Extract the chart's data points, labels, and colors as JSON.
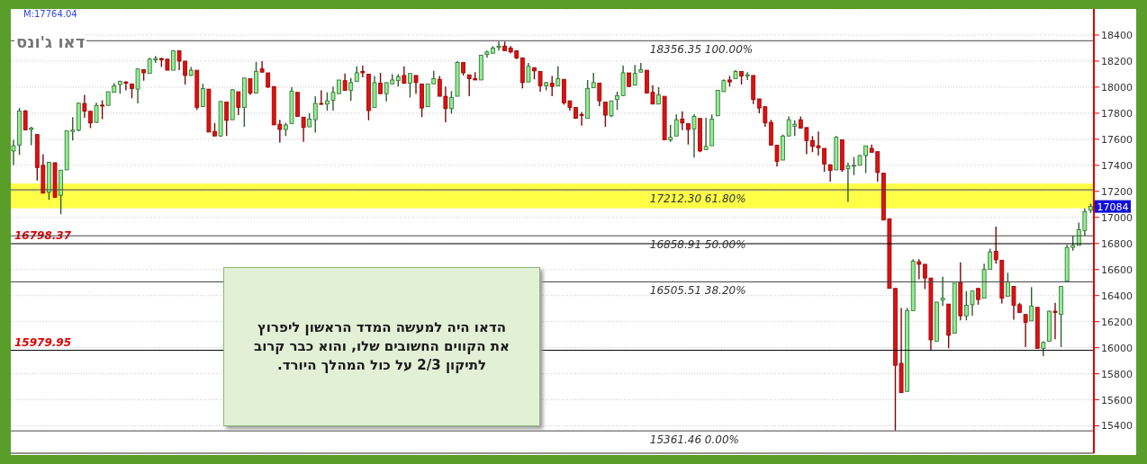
{
  "chart_data": {
    "type": "candlestick",
    "title": "דאו ג'ונס",
    "categories": [
      null,
      null,
      null,
      null,
      null,
      null,
      null,
      null,
      null,
      null,
      null,
      null,
      null,
      null,
      null,
      null,
      null,
      null,
      null,
      null,
      null,
      null,
      null,
      null,
      null,
      null,
      null,
      null,
      null,
      null,
      null,
      null,
      null,
      null,
      null,
      null,
      null,
      null,
      null,
      null,
      null,
      null,
      null,
      null,
      null,
      null,
      null,
      null,
      null,
      null,
      null,
      null,
      null,
      null,
      null,
      null,
      null,
      null,
      null,
      null,
      null,
      null,
      null,
      null,
      null,
      null,
      null,
      null,
      null,
      null,
      null,
      null,
      null,
      null,
      null,
      null,
      null,
      null,
      null,
      null,
      null,
      null,
      null,
      null,
      null,
      null,
      null,
      null,
      null,
      null,
      null,
      null,
      null,
      null,
      null,
      null,
      null,
      null,
      null,
      null,
      null,
      null,
      null,
      null,
      null,
      null,
      null,
      null,
      null,
      null,
      null,
      null,
      null,
      null,
      null,
      null,
      null,
      null,
      null,
      null,
      null,
      null,
      null,
      null,
      null,
      null,
      null,
      null,
      null,
      null,
      null,
      null,
      null,
      null,
      null,
      null,
      null,
      null,
      null,
      null,
      null,
      null,
      null,
      null,
      null,
      null,
      null,
      null,
      null,
      null,
      null,
      null,
      null,
      null,
      null,
      null,
      null,
      null,
      null,
      null,
      null,
      null,
      null,
      null,
      null,
      null,
      null,
      null,
      null,
      null,
      null,
      null,
      null,
      null,
      null,
      null,
      null,
      null,
      null,
      null,
      null,
      null,
      null
    ],
    "ohlc": [
      [
        17510,
        17595,
        17400,
        17550
      ],
      [
        17556,
        17840,
        17480,
        17817
      ],
      [
        17817,
        17825,
        17670,
        17671
      ],
      [
        17675,
        17695,
        17555,
        17685
      ],
      [
        17636,
        17640,
        17283,
        17383
      ],
      [
        17400,
        17485,
        17186,
        17186
      ],
      [
        17193,
        17425,
        17135,
        17423
      ],
      [
        17420,
        17420,
        17150,
        17155
      ],
      [
        17170,
        17363,
        17025,
        17363
      ],
      [
        17365,
        17665,
        17365,
        17665
      ],
      [
        17660,
        17770,
        17590,
        17670
      ],
      [
        17670,
        17880,
        17660,
        17877
      ],
      [
        17875,
        17940,
        17765,
        17815
      ],
      [
        17815,
        17815,
        17685,
        17725
      ],
      [
        17730,
        17880,
        17725,
        17860
      ],
      [
        17862,
        17900,
        17755,
        17855
      ],
      [
        17860,
        17965,
        17860,
        17965
      ],
      [
        17960,
        18030,
        17960,
        18010
      ],
      [
        18020,
        18050,
        17950,
        18045
      ],
      [
        18040,
        18045,
        17975,
        18030
      ],
      [
        18025,
        18025,
        17915,
        17990
      ],
      [
        17985,
        18140,
        17875,
        18140
      ],
      [
        18135,
        18135,
        18050,
        18110
      ],
      [
        18105,
        18225,
        18105,
        18215
      ],
      [
        18210,
        18240,
        18185,
        18220
      ],
      [
        18220,
        18225,
        18155,
        18210
      ],
      [
        18215,
        18215,
        18130,
        18130
      ],
      [
        18130,
        18285,
        18130,
        18280
      ],
      [
        18280,
        18280,
        18130,
        18200
      ],
      [
        18200,
        18200,
        18020,
        18090
      ],
      [
        18090,
        18155,
        18085,
        18130
      ],
      [
        18130,
        18130,
        17825,
        17845
      ],
      [
        17850,
        18025,
        17850,
        17990
      ],
      [
        17985,
        17985,
        17655,
        17655
      ],
      [
        17660,
        17725,
        17625,
        17625
      ],
      [
        17625,
        17890,
        17620,
        17890
      ],
      [
        17885,
        17885,
        17625,
        17745
      ],
      [
        17750,
        17985,
        17750,
        17980
      ],
      [
        17965,
        17965,
        17785,
        17845
      ],
      [
        17845,
        18070,
        17695,
        18070
      ],
      [
        18065,
        18065,
        17940,
        17955
      ],
      [
        17955,
        18195,
        17955,
        18120
      ],
      [
        18140,
        18200,
        18115,
        18115
      ],
      [
        18110,
        18110,
        17995,
        18000
      ],
      [
        18005,
        18005,
        17710,
        17710
      ],
      [
        17715,
        17750,
        17575,
        17675
      ],
      [
        17675,
        17725,
        17625,
        17710
      ],
      [
        17720,
        18000,
        17720,
        17970
      ],
      [
        17960,
        17960,
        17775,
        17775
      ],
      [
        17770,
        17770,
        17580,
        17690
      ],
      [
        17695,
        17800,
        17695,
        17755
      ],
      [
        17750,
        17930,
        17650,
        17875
      ],
      [
        17875,
        17975,
        17865,
        17870
      ],
      [
        17870,
        17960,
        17820,
        17895
      ],
      [
        17900,
        18005,
        17820,
        17960
      ],
      [
        17950,
        18055,
        17950,
        18055
      ],
      [
        18050,
        18105,
        17975,
        17975
      ],
      [
        17975,
        18070,
        17895,
        18035
      ],
      [
        18045,
        18160,
        18045,
        18110
      ],
      [
        18120,
        18165,
        18075,
        18110
      ],
      [
        18100,
        18100,
        17745,
        17820
      ],
      [
        17845,
        18085,
        17845,
        18035
      ],
      [
        18030,
        18110,
        17950,
        17950
      ],
      [
        17950,
        18035,
        17890,
        18035
      ],
      [
        18025,
        18100,
        18025,
        18055
      ],
      [
        18050,
        18100,
        18005,
        18080
      ],
      [
        18090,
        18160,
        18025,
        18030
      ],
      [
        18030,
        18105,
        17920,
        18105
      ],
      [
        18090,
        18090,
        17950,
        18035
      ],
      [
        18025,
        18025,
        17770,
        17840
      ],
      [
        17850,
        18025,
        17850,
        18025
      ],
      [
        18025,
        18125,
        18025,
        18065
      ],
      [
        18060,
        18085,
        17930,
        17930
      ],
      [
        17930,
        18005,
        17730,
        17835
      ],
      [
        17835,
        17970,
        17795,
        17920
      ],
      [
        17930,
        18200,
        17930,
        18190
      ],
      [
        18190,
        18190,
        18090,
        18110
      ],
      [
        18095,
        18095,
        17930,
        18065
      ],
      [
        18065,
        18115,
        18055,
        18055
      ],
      [
        18055,
        18245,
        18055,
        18245
      ],
      [
        18250,
        18280,
        18225,
        18270
      ],
      [
        18260,
        18315,
        18260,
        18300
      ],
      [
        18305,
        18350,
        18280,
        18315
      ],
      [
        18315,
        18350,
        18280,
        18280
      ],
      [
        18300,
        18315,
        18260,
        18270
      ],
      [
        18280,
        18280,
        18215,
        18225
      ],
      [
        18225,
        18225,
        17990,
        18035
      ],
      [
        18040,
        18185,
        18040,
        18160
      ],
      [
        18150,
        18150,
        18060,
        18125
      ],
      [
        18120,
        18120,
        17965,
        18010
      ],
      [
        18010,
        18040,
        17975,
        18035
      ],
      [
        18030,
        18085,
        17930,
        18005
      ],
      [
        18010,
        18160,
        18010,
        18065
      ],
      [
        18060,
        18060,
        17865,
        17880
      ],
      [
        17895,
        17895,
        17820,
        17845
      ],
      [
        17845,
        17845,
        17760,
        17760
      ],
      [
        17790,
        17810,
        17705,
        17785
      ],
      [
        17760,
        18055,
        17760,
        17990
      ],
      [
        17995,
        18110,
        17995,
        18035
      ],
      [
        18030,
        18030,
        17855,
        17895
      ],
      [
        17885,
        17885,
        17695,
        17785
      ],
      [
        17780,
        17895,
        17770,
        17895
      ],
      [
        17905,
        17965,
        17825,
        17935
      ],
      [
        17935,
        18165,
        17935,
        18110
      ],
      [
        18110,
        18110,
        18005,
        18005
      ],
      [
        18015,
        18170,
        18015,
        18105
      ],
      [
        18115,
        18185,
        18115,
        18135
      ],
      [
        18130,
        18130,
        17955,
        17955
      ],
      [
        17960,
        18015,
        17870,
        17870
      ],
      [
        17870,
        18000,
        17870,
        17940
      ],
      [
        17930,
        17930,
        17595,
        17595
      ],
      [
        17595,
        17710,
        17580,
        17615
      ],
      [
        17625,
        17790,
        17625,
        17750
      ],
      [
        17755,
        17815,
        17670,
        17725
      ],
      [
        17720,
        17720,
        17560,
        17675
      ],
      [
        17680,
        17790,
        17460,
        17775
      ],
      [
        17760,
        17760,
        17500,
        17510
      ],
      [
        17520,
        17765,
        17520,
        17545
      ],
      [
        17550,
        17790,
        17550,
        17755
      ],
      [
        17780,
        17975,
        17780,
        17975
      ],
      [
        17965,
        18060,
        17965,
        18050
      ],
      [
        18055,
        18085,
        18005,
        18040
      ],
      [
        18065,
        18130,
        18065,
        18120
      ],
      [
        18120,
        18120,
        18020,
        18085
      ],
      [
        18085,
        18115,
        18055,
        18095
      ],
      [
        18090,
        18090,
        17870,
        17905
      ],
      [
        17910,
        17910,
        17800,
        17840
      ],
      [
        17850,
        17850,
        17695,
        17725
      ],
      [
        17730,
        17750,
        17555,
        17555
      ],
      [
        17555,
        17555,
        17390,
        17430
      ],
      [
        17440,
        17635,
        17440,
        17625
      ],
      [
        17625,
        17775,
        17625,
        17750
      ],
      [
        17700,
        17745,
        17625,
        17715
      ],
      [
        17750,
        17775,
        17685,
        17685
      ],
      [
        17690,
        17690,
        17485,
        17590
      ],
      [
        17590,
        17625,
        17500,
        17545
      ],
      [
        17550,
        17660,
        17475,
        17535
      ],
      [
        17530,
        17530,
        17350,
        17410
      ],
      [
        17405,
        17405,
        17275,
        17360
      ],
      [
        17365,
        17625,
        17365,
        17615
      ],
      [
        17595,
        17595,
        17350,
        17365
      ],
      [
        17375,
        17420,
        17120,
        17395
      ],
      [
        17395,
        17465,
        17325,
        17400
      ],
      [
        17400,
        17480,
        17400,
        17475
      ],
      [
        17475,
        17550,
        17340,
        17550
      ],
      [
        17530,
        17560,
        17500,
        17500
      ],
      [
        17505,
        17505,
        17275,
        17345
      ],
      [
        17340,
        17340,
        16980,
        16980
      ],
      [
        16990,
        16990,
        16455,
        16455
      ],
      [
        16455,
        16455,
        15365,
        15865
      ],
      [
        15880,
        16305,
        15655,
        15655
      ],
      [
        15665,
        16305,
        15665,
        16285
      ],
      [
        16285,
        16680,
        16285,
        16665
      ],
      [
        16660,
        16680,
        16525,
        16640
      ],
      [
        16640,
        16640,
        16450,
        16535
      ],
      [
        16535,
        16535,
        15980,
        16060
      ],
      [
        16050,
        16350,
        16050,
        16350
      ],
      [
        16365,
        16545,
        16320,
        16380
      ],
      [
        16335,
        16335,
        15995,
        16095
      ],
      [
        16110,
        16495,
        16110,
        16495
      ],
      [
        16500,
        16655,
        16210,
        16245
      ],
      [
        16245,
        16435,
        16210,
        16325
      ],
      [
        16330,
        16435,
        16245,
        16435
      ],
      [
        16455,
        16455,
        16330,
        16370
      ],
      [
        16380,
        16645,
        16380,
        16600
      ],
      [
        16600,
        16760,
        16600,
        16735
      ],
      [
        16740,
        16930,
        16645,
        16675
      ],
      [
        16670,
        16670,
        16340,
        16380
      ],
      [
        16395,
        16575,
        16395,
        16505
      ],
      [
        16470,
        16470,
        16215,
        16325
      ],
      [
        16330,
        16345,
        16270,
        16270
      ],
      [
        16255,
        16255,
        16005,
        16195
      ],
      [
        16205,
        16465,
        16205,
        16320
      ],
      [
        16310,
        16310,
        15995,
        15995
      ],
      [
        15995,
        16050,
        15935,
        16040
      ],
      [
        16050,
        16285,
        16050,
        16280
      ],
      [
        16280,
        16345,
        16065,
        16270
      ],
      [
        16255,
        16470,
        16005,
        16470
      ],
      [
        16510,
        16790,
        16510,
        16770
      ],
      [
        16770,
        16860,
        16745,
        16785
      ],
      [
        16785,
        16960,
        16785,
        16905
      ],
      [
        16900,
        17070,
        16860,
        17045
      ],
      [
        17055,
        17105,
        17035,
        17084
      ]
    ],
    "ylim": [
      15190,
      18600
    ],
    "yticks": [
      15400,
      15600,
      15800,
      16000,
      16200,
      16400,
      16600,
      16800,
      17000,
      17200,
      17400,
      17600,
      17800,
      18000,
      18200,
      18400
    ],
    "grid": "y",
    "ref_lines": [
      {
        "axis": "y",
        "value": 16798.37,
        "label": "16798.37",
        "color": "#000000"
      },
      {
        "axis": "y",
        "value": 15979.95,
        "label": "15979.95",
        "color": "#000000"
      },
      {
        "axis": "y",
        "value": 18356.35,
        "label": "18356.35 100.00%"
      },
      {
        "axis": "y",
        "value": 17212.3,
        "label": "17212.30 61.80%"
      },
      {
        "axis": "y",
        "value": 16858.91,
        "label": "16858.91 50.00%"
      },
      {
        "axis": "y",
        "value": 16505.51,
        "label": "16505.51 38.20%"
      },
      {
        "axis": "y",
        "value": 15361.46,
        "label": "15361.46 0.00%"
      }
    ],
    "bands": [
      {
        "axis": "y",
        "from": 17070,
        "to": 17260,
        "color": "#ffff33"
      }
    ],
    "annotations": [
      "M:17764.04",
      "הדאו היה למעשה המדד הראשון ליפרוץ\nאת הקווים החשובים שלו, והוא כבר קרוב\nלתיקון 2/3 על כול המהלך היורד.",
      {
        "text": "17084",
        "y": 17084
      }
    ]
  }
}
